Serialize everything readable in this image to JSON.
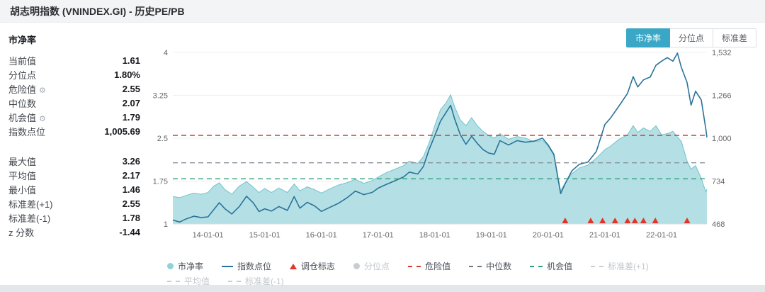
{
  "header": {
    "title": "胡志明指数 (VNINDEX.GI) - 历史PE/PB"
  },
  "colors": {
    "accent": "#3aa7c7"
  },
  "panel": {
    "title": "市净率",
    "gear_icon": "⚙",
    "stats_primary": [
      {
        "label": "当前值",
        "value": "1.61"
      },
      {
        "label": "分位点",
        "value": "1.80%"
      },
      {
        "label": "危险值",
        "value": "2.55",
        "gear": true
      },
      {
        "label": "中位数",
        "value": "2.07"
      },
      {
        "label": "机会值",
        "value": "1.79",
        "gear": true
      },
      {
        "label": "指数点位",
        "value": "1,005.69"
      }
    ],
    "stats_secondary": [
      {
        "label": "最大值",
        "value": "3.26"
      },
      {
        "label": "平均值",
        "value": "2.17"
      },
      {
        "label": "最小值",
        "value": "1.46"
      },
      {
        "label": "标准差(+1)",
        "value": "2.55"
      },
      {
        "label": "标准差(-1)",
        "value": "1.78"
      },
      {
        "label": "z 分数",
        "value": "-1.44"
      }
    ]
  },
  "tabs": [
    {
      "label": "市净率",
      "active": true
    },
    {
      "label": "分位点",
      "active": false
    },
    {
      "label": "标准差",
      "active": false
    }
  ],
  "chart_data": {
    "type": "line+area",
    "x_range": [
      2013.38,
      2022.8
    ],
    "x_ticks": [
      "14-01-01",
      "15-01-01",
      "16-01-01",
      "17-01-01",
      "18-01-01",
      "19-01-01",
      "20-01-01",
      "21-01-01",
      "22-01-01"
    ],
    "x_tick_positions": [
      2014,
      2015,
      2016,
      2017,
      2018,
      2019,
      2020,
      2021,
      2022
    ],
    "left_axis": {
      "min": 1,
      "max": 4,
      "tick_values": [
        1,
        1.75,
        2.5,
        3.25,
        4
      ],
      "tick_labels": [
        "1",
        "1.75",
        "2.5",
        "3.25",
        "4"
      ]
    },
    "right_axis": {
      "min": 468,
      "max": 1532,
      "tick_values": [
        468,
        734,
        1000,
        1266,
        1532
      ],
      "tick_labels": [
        "468",
        "734",
        "1,000",
        "1,266",
        "1,532"
      ]
    },
    "x": [
      2013.38,
      2013.5,
      2013.62,
      2013.75,
      2013.88,
      2014.0,
      2014.1,
      2014.2,
      2014.3,
      2014.42,
      2014.55,
      2014.68,
      2014.8,
      2014.9,
      2015.0,
      2015.12,
      2015.25,
      2015.4,
      2015.52,
      2015.62,
      2015.75,
      2015.88,
      2016.0,
      2016.12,
      2016.3,
      2016.45,
      2016.6,
      2016.75,
      2016.9,
      2017.0,
      2017.15,
      2017.3,
      2017.45,
      2017.55,
      2017.7,
      2017.8,
      2017.9,
      2018.0,
      2018.1,
      2018.2,
      2018.28,
      2018.35,
      2018.45,
      2018.55,
      2018.65,
      2018.75,
      2018.85,
      2018.95,
      2019.05,
      2019.15,
      2019.3,
      2019.45,
      2019.6,
      2019.75,
      2019.9,
      2020.0,
      2020.1,
      2020.22,
      2020.3,
      2020.42,
      2020.55,
      2020.7,
      2020.85,
      2021.0,
      2021.1,
      2021.25,
      2021.4,
      2021.5,
      2021.58,
      2021.68,
      2021.8,
      2021.9,
      2022.0,
      2022.1,
      2022.2,
      2022.28,
      2022.35,
      2022.45,
      2022.52,
      2022.6,
      2022.7,
      2022.78,
      2022.8
    ],
    "series": [
      {
        "name": "市净率",
        "type": "area",
        "axis": "left",
        "color": "#a7dbe0",
        "line_color": "#72c3cc",
        "values": [
          1.48,
          1.46,
          1.5,
          1.54,
          1.52,
          1.55,
          1.66,
          1.72,
          1.6,
          1.52,
          1.66,
          1.74,
          1.64,
          1.55,
          1.62,
          1.55,
          1.63,
          1.55,
          1.7,
          1.58,
          1.65,
          1.6,
          1.54,
          1.6,
          1.68,
          1.72,
          1.78,
          1.71,
          1.76,
          1.82,
          1.9,
          1.96,
          2.02,
          2.1,
          2.06,
          2.18,
          2.42,
          2.72,
          3.0,
          3.12,
          3.26,
          3.05,
          2.82,
          2.72,
          2.86,
          2.72,
          2.62,
          2.55,
          2.5,
          2.58,
          2.48,
          2.53,
          2.5,
          2.44,
          2.46,
          2.36,
          2.2,
          1.58,
          1.72,
          1.88,
          1.98,
          2.03,
          2.15,
          2.3,
          2.36,
          2.48,
          2.56,
          2.72,
          2.6,
          2.68,
          2.62,
          2.72,
          2.56,
          2.58,
          2.62,
          2.52,
          2.44,
          2.1,
          1.96,
          2.02,
          1.8,
          1.56,
          1.61
        ]
      },
      {
        "name": "指数点位",
        "type": "line",
        "axis": "right",
        "color": "#2a7398",
        "values": [
          492,
          480,
          500,
          516,
          508,
          512,
          556,
          600,
          562,
          530,
          575,
          640,
          598,
          545,
          562,
          548,
          576,
          552,
          638,
          566,
          602,
          580,
          546,
          566,
          596,
          630,
          672,
          650,
          664,
          690,
          714,
          736,
          760,
          790,
          778,
          825,
          930,
          1015,
          1105,
          1160,
          1204,
          1120,
          1022,
          962,
          1012,
          968,
          930,
          908,
          900,
          985,
          958,
          985,
          975,
          982,
          1000,
          958,
          900,
          656,
          718,
          798,
          838,
          852,
          918,
          1085,
          1125,
          1200,
          1278,
          1382,
          1318,
          1362,
          1380,
          1452,
          1478,
          1500,
          1478,
          1528,
          1438,
          1345,
          1205,
          1292,
          1238,
          1058,
          1005.69
        ]
      }
    ],
    "hlines": [
      {
        "name": "危险值",
        "value": 2.55,
        "color": "#d23b32"
      },
      {
        "name": "中位数",
        "value": 2.07,
        "color": "#8b919a"
      },
      {
        "name": "机会值",
        "value": 1.79,
        "color": "#2f9e77"
      }
    ],
    "markers": {
      "name": "调仓标志",
      "color": "#e03527",
      "x": [
        2020.3,
        2020.75,
        2020.96,
        2021.18,
        2021.4,
        2021.53,
        2021.68,
        2021.89,
        2022.45
      ]
    }
  },
  "legend": {
    "row1": [
      {
        "label": "市净率",
        "marker": "dot",
        "color": "#8fd2da",
        "icon": "area-series-dot-icon",
        "muted": false
      },
      {
        "label": "指数点位",
        "marker": "line",
        "color": "#2a7398",
        "icon": "line-series-icon",
        "muted": false
      },
      {
        "label": "调仓标志",
        "marker": "triangle",
        "color": "#e03527",
        "icon": "triangle-marker-icon",
        "muted": false
      },
      {
        "label": "分位点",
        "marker": "dot",
        "color": "#c9cdd3",
        "icon": "dot-series-icon",
        "muted": true
      },
      {
        "label": "危险值",
        "marker": "dash",
        "color": "#d23b32",
        "icon": "red-dashed-line-icon",
        "muted": false
      },
      {
        "label": "中位数",
        "marker": "dash",
        "color": "#6f7680",
        "icon": "gray-dashed-line-icon",
        "muted": false
      },
      {
        "label": "机会值",
        "marker": "dash",
        "color": "#2f9e77",
        "icon": "green-dashed-line-icon",
        "muted": false
      },
      {
        "label": "标准差(+1)",
        "marker": "dash",
        "color": "#c9cdd3",
        "icon": "muted-dashed-line-icon",
        "muted": true
      }
    ],
    "row2": [
      {
        "label": "平均值",
        "marker": "dash",
        "color": "#c9cdd3",
        "icon": "muted-dashed-line-icon",
        "muted": true
      },
      {
        "label": "标准差(-1)",
        "marker": "dash",
        "color": "#c9cdd3",
        "icon": "muted-dashed-line-icon",
        "muted": true
      }
    ]
  }
}
